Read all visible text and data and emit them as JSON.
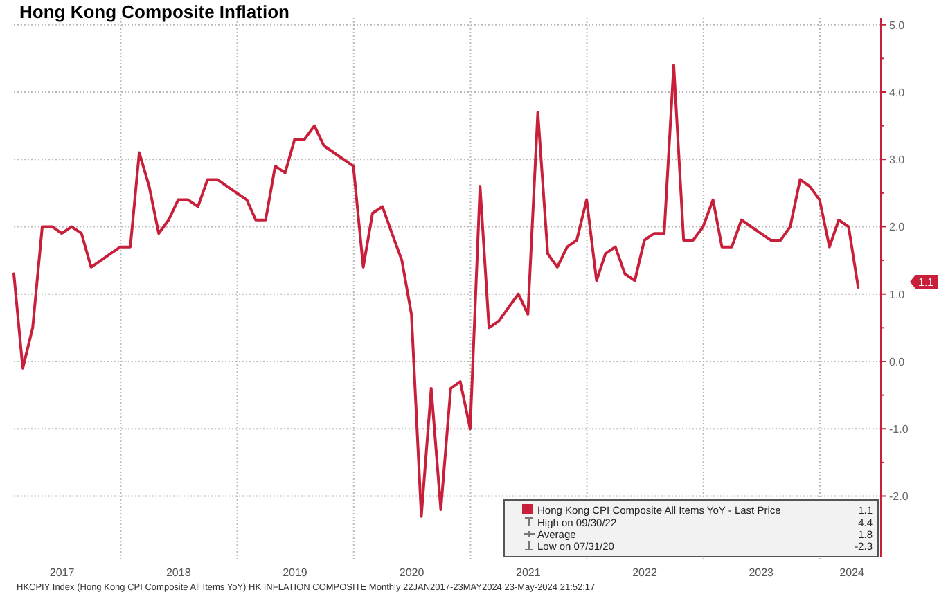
{
  "chart_data": {
    "type": "line",
    "title": "Hong Kong Composite Inflation",
    "x": [
      "2017-01-31",
      "2017-02-28",
      "2017-03-31",
      "2017-04-30",
      "2017-05-31",
      "2017-06-30",
      "2017-07-31",
      "2017-08-31",
      "2017-09-30",
      "2017-10-31",
      "2017-11-30",
      "2017-12-31",
      "2018-01-31",
      "2018-02-28",
      "2018-03-31",
      "2018-04-30",
      "2018-05-31",
      "2018-06-30",
      "2018-07-31",
      "2018-08-31",
      "2018-09-30",
      "2018-10-31",
      "2018-11-30",
      "2018-12-31",
      "2019-01-31",
      "2019-02-28",
      "2019-03-31",
      "2019-04-30",
      "2019-05-31",
      "2019-06-30",
      "2019-07-31",
      "2019-08-31",
      "2019-09-30",
      "2019-10-31",
      "2019-11-30",
      "2019-12-31",
      "2020-01-31",
      "2020-02-29",
      "2020-03-31",
      "2020-04-30",
      "2020-05-31",
      "2020-06-30",
      "2020-07-31",
      "2020-08-31",
      "2020-09-30",
      "2020-10-31",
      "2020-11-30",
      "2020-12-31",
      "2021-01-31",
      "2021-02-28",
      "2021-03-31",
      "2021-04-30",
      "2021-05-31",
      "2021-06-30",
      "2021-07-31",
      "2021-08-31",
      "2021-09-30",
      "2021-10-31",
      "2021-11-30",
      "2021-12-31",
      "2022-01-31",
      "2022-02-28",
      "2022-03-31",
      "2022-04-30",
      "2022-05-31",
      "2022-06-30",
      "2022-07-31",
      "2022-08-31",
      "2022-09-30",
      "2022-10-31",
      "2022-11-30",
      "2022-12-31",
      "2023-01-31",
      "2023-02-28",
      "2023-03-31",
      "2023-04-30",
      "2023-05-31",
      "2023-06-30",
      "2023-07-31",
      "2023-08-31",
      "2023-09-30",
      "2023-10-31",
      "2023-11-30",
      "2023-12-31",
      "2024-01-31",
      "2024-02-29",
      "2024-03-31",
      "2024-04-30"
    ],
    "series": [
      {
        "name": "Hong Kong CPI Composite All Items YoY - Last Price",
        "color": "#c8203a",
        "values": [
          1.3,
          -0.1,
          0.5,
          2.0,
          2.0,
          1.9,
          2.0,
          1.9,
          1.4,
          1.5,
          1.6,
          1.7,
          1.7,
          3.1,
          2.6,
          1.9,
          2.1,
          2.4,
          2.4,
          2.3,
          2.7,
          2.7,
          2.6,
          2.5,
          2.4,
          2.1,
          2.1,
          2.9,
          2.8,
          3.3,
          3.3,
          3.5,
          3.2,
          3.1,
          3.0,
          2.9,
          1.4,
          2.2,
          2.3,
          1.9,
          1.5,
          0.7,
          -2.3,
          -0.4,
          -2.2,
          -0.4,
          -0.3,
          -1.0,
          2.6,
          0.5,
          0.6,
          0.8,
          1.0,
          0.7,
          3.7,
          1.6,
          1.4,
          1.7,
          1.8,
          2.4,
          1.2,
          1.6,
          1.7,
          1.3,
          1.2,
          1.8,
          1.9,
          1.9,
          4.4,
          1.8,
          1.8,
          2.0,
          2.4,
          1.7,
          1.7,
          2.1,
          2.0,
          1.9,
          1.8,
          1.8,
          2.0,
          2.7,
          2.6,
          2.4,
          1.7,
          2.1,
          2.0,
          1.1
        ]
      }
    ],
    "xlim": [
      "2017-01-31",
      "2024-07-10"
    ],
    "xticks": [
      {
        "value": "2017-07-01",
        "label": "2017"
      },
      {
        "value": "2018-01-01",
        "label": null
      },
      {
        "value": "2018-07-01",
        "label": "2018"
      },
      {
        "value": "2019-01-01",
        "label": null
      },
      {
        "value": "2019-07-01",
        "label": "2019"
      },
      {
        "value": "2020-01-01",
        "label": null
      },
      {
        "value": "2020-07-01",
        "label": "2020"
      },
      {
        "value": "2021-01-01",
        "label": null
      },
      {
        "value": "2021-07-01",
        "label": "2021"
      },
      {
        "value": "2022-01-01",
        "label": null
      },
      {
        "value": "2022-07-01",
        "label": "2022"
      },
      {
        "value": "2023-01-01",
        "label": null
      },
      {
        "value": "2023-07-01",
        "label": "2023"
      },
      {
        "value": "2024-01-01",
        "label": null
      },
      {
        "value": "2024-04-10",
        "label": "2024"
      }
    ],
    "ylim": [
      -2.9,
      5.1
    ],
    "yticks": [
      {
        "value": -2,
        "label": "-2.0"
      },
      {
        "value": -1.5,
        "label": null
      },
      {
        "value": -1,
        "label": "-1.0"
      },
      {
        "value": -0.5,
        "label": null
      },
      {
        "value": 0,
        "label": "0.0"
      },
      {
        "value": 0.5,
        "label": null
      },
      {
        "value": 1,
        "label": "1.0"
      },
      {
        "value": 1.5,
        "label": null
      },
      {
        "value": 2,
        "label": "2.0"
      },
      {
        "value": 2.5,
        "label": null
      },
      {
        "value": 3,
        "label": "3.0"
      },
      {
        "value": 3.5,
        "label": null
      },
      {
        "value": 4,
        "label": "4.0"
      },
      {
        "value": 4.5,
        "label": null
      },
      {
        "value": 5,
        "label": "5.0"
      }
    ],
    "grid": true,
    "legend": "bottom right",
    "annotations": [
      "1.1",
      "1.1",
      "High on 09/30/22",
      "4.4",
      "Average",
      "1.8",
      "Low on 07/31/20",
      "-2.3",
      "HKCPIY Index (Hong Kong CPI Composite All Items YoY) HK INFLATION COMPOSITE  Monthly 22JAN2017-23MAY2024  23-May-2024 21:52:17"
    ]
  }
}
